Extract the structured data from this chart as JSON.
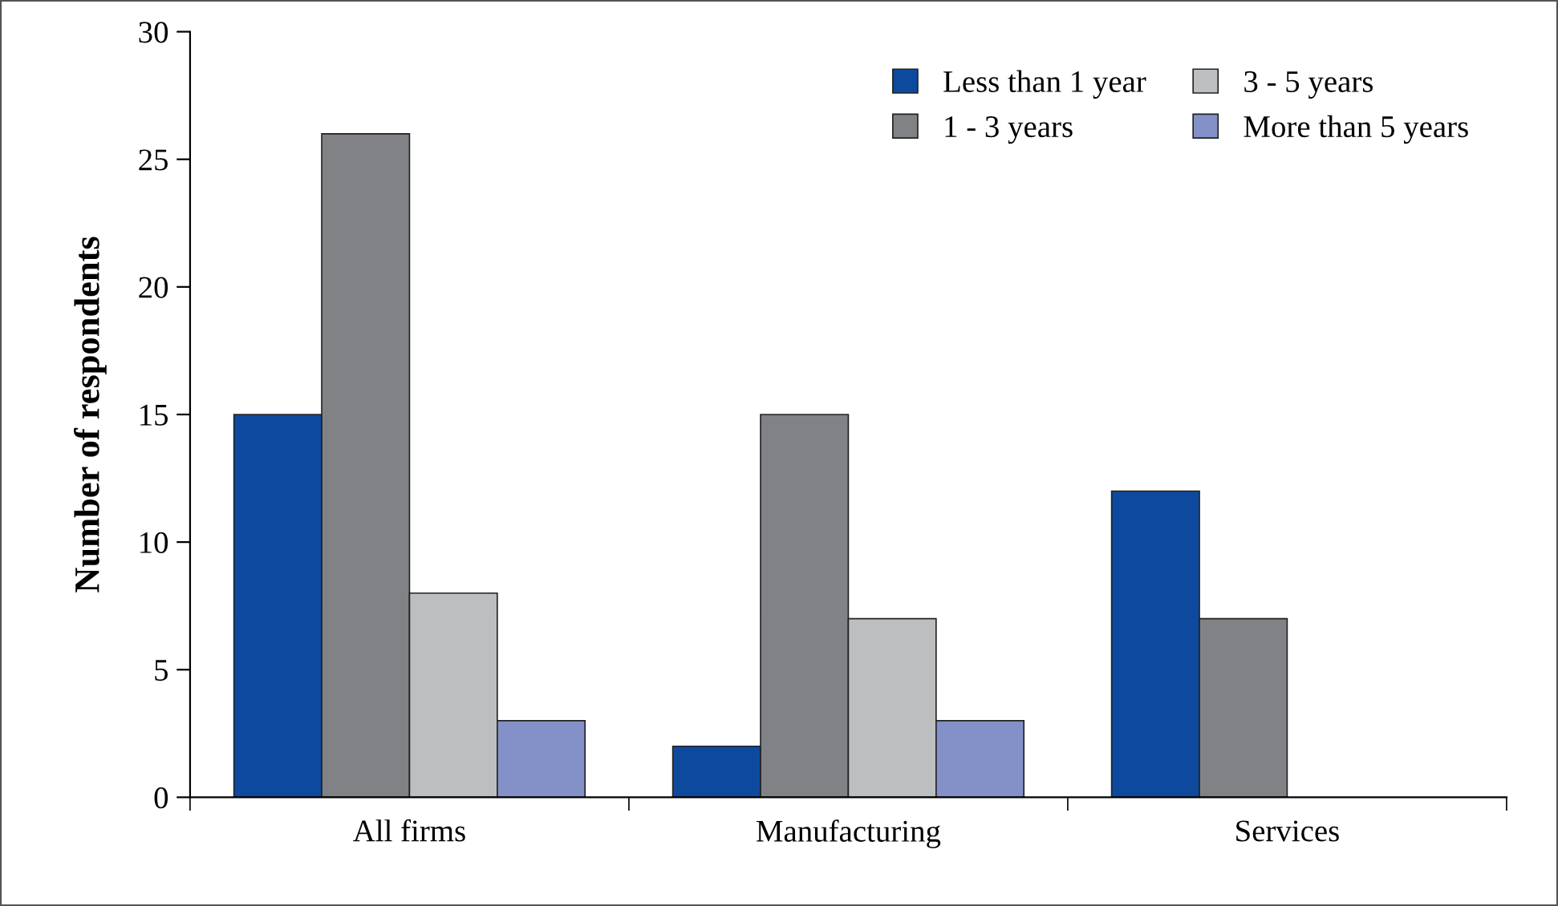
{
  "chart_data": {
    "type": "bar",
    "ylabel": "Number of respondents",
    "categories": [
      "All firms",
      "Manufacturing",
      "Services"
    ],
    "series": [
      {
        "name": "Less than 1 year",
        "color": "#0d4a9e",
        "values": [
          15,
          2,
          12
        ]
      },
      {
        "name": "1 - 3 years",
        "color": "#808285",
        "values": [
          26,
          15,
          7
        ]
      },
      {
        "name": "3 - 5 years",
        "color": "#bcbec0",
        "values": [
          8,
          7,
          null
        ]
      },
      {
        "name": "More than 5 years",
        "color": "#8491c8",
        "values": [
          3,
          3,
          null
        ]
      }
    ],
    "ylim": [
      0,
      30
    ],
    "yticks": [
      0,
      5,
      10,
      15,
      20,
      25,
      30
    ],
    "grid": false,
    "legend": "top right"
  }
}
